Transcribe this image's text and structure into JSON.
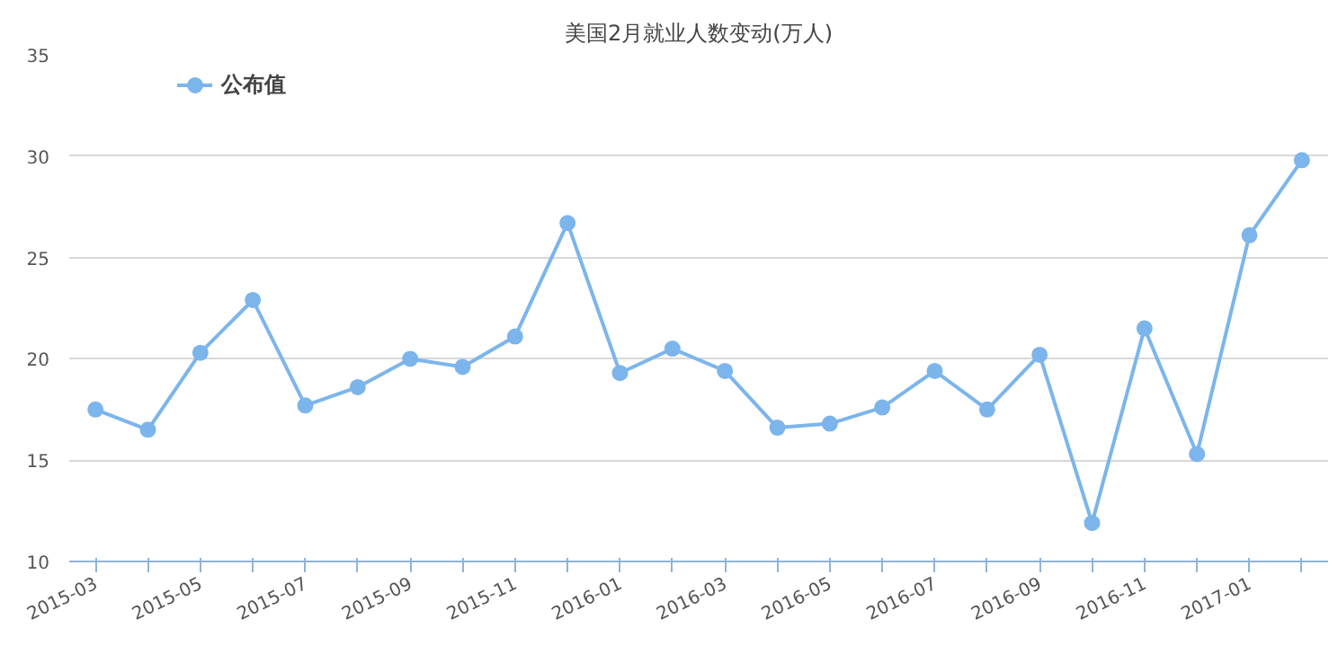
{
  "chart_data": {
    "type": "line",
    "title": "美国2月就业人数变动(万人)",
    "categories": [
      "2015-03",
      null,
      "2015-05",
      null,
      "2015-07",
      null,
      "2015-09",
      null,
      "2015-11",
      null,
      "2016-01",
      null,
      "2016-03",
      null,
      "2016-05",
      null,
      "2016-07",
      null,
      "2016-09",
      null,
      "2016-11",
      null,
      "2017-01",
      null
    ],
    "series": [
      {
        "name": "公布值",
        "color": "#7cb5ec",
        "values": [
          17.5,
          16.5,
          20.3,
          22.9,
          17.7,
          18.6,
          20.0,
          19.6,
          21.1,
          26.7,
          19.3,
          20.5,
          19.4,
          16.6,
          16.8,
          17.6,
          19.4,
          17.5,
          20.2,
          11.9,
          21.5,
          15.3,
          26.1,
          29.8
        ]
      }
    ],
    "ylim": [
      10,
      35
    ],
    "yticks": [
      10,
      15,
      20,
      25,
      30,
      35
    ],
    "grid": "y",
    "legend": "top left",
    "marker": "circle",
    "line_style": "solid"
  }
}
